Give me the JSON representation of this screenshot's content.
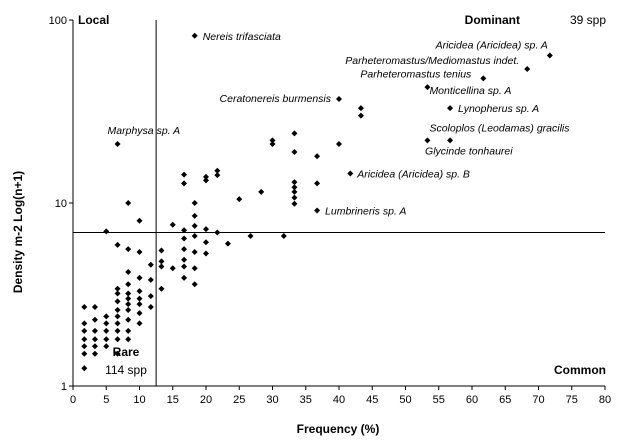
{
  "chart_data": {
    "type": "scatter",
    "xlabel": "Frequency (%)",
    "ylabel": "Density m-2 Log(n+1)",
    "xlim": [
      0,
      80
    ],
    "ylim": [
      1,
      100
    ],
    "yscale": "log",
    "x_ticks": [
      "0",
      "5",
      "10",
      "15",
      "20",
      "25",
      "30",
      "35",
      "40",
      "45",
      "50",
      "55",
      "60",
      "65",
      "70",
      "75",
      "80"
    ],
    "y_ticks": [
      {
        "value": 1,
        "label": "1"
      },
      {
        "value": 10,
        "label": "10"
      },
      {
        "value": 100,
        "label": "100"
      }
    ],
    "grid": false,
    "thresholds": {
      "frequency": 12.5,
      "density": 6.9
    },
    "quadrants": {
      "local": {
        "title": "Local"
      },
      "dominant": {
        "title": "Dominant",
        "count": "39 spp"
      },
      "rare": {
        "title": "Rare",
        "count": "114 spp"
      },
      "common": {
        "title": "Common"
      }
    },
    "labeled_points": [
      {
        "label": "Nereis trifasciata",
        "x": 18.3,
        "y": 82
      },
      {
        "label": "Aricidea (Aricidea) sp. A",
        "x": 71.7,
        "y": 64
      },
      {
        "label": "Parheteromastus/Mediomastus indet.",
        "x": 68.3,
        "y": 54
      },
      {
        "label": "Parheteromastus tenius",
        "x": 61.7,
        "y": 48
      },
      {
        "label": "Monticellina sp. A",
        "x": 53.3,
        "y": 43
      },
      {
        "label": "Ceratonereis burmensis",
        "x": 40,
        "y": 37
      },
      {
        "label": "Lynopherus sp. A",
        "x": 56.7,
        "y": 33
      },
      {
        "label": "Marphysa sp. A",
        "x": 6.7,
        "y": 21
      },
      {
        "label": "Scoloplos (Leodamas) gracilis",
        "x": 53.3,
        "y": 22
      },
      {
        "label": "Glycinde tonhaurei",
        "x": 56.7,
        "y": 22
      },
      {
        "label": "Aricidea (Aricidea) sp. B",
        "x": 41.7,
        "y": 14.5
      },
      {
        "label": "Lumbrineris sp. A",
        "x": 36.7,
        "y": 9.1
      }
    ],
    "points": [
      {
        "x": 43.3,
        "y": 33
      },
      {
        "x": 43.3,
        "y": 30
      },
      {
        "x": 33.3,
        "y": 24
      },
      {
        "x": 30,
        "y": 22
      },
      {
        "x": 30,
        "y": 21
      },
      {
        "x": 40,
        "y": 21
      },
      {
        "x": 33.3,
        "y": 19
      },
      {
        "x": 36.7,
        "y": 18
      },
      {
        "x": 16.7,
        "y": 14.3
      },
      {
        "x": 21.7,
        "y": 15
      },
      {
        "x": 21.7,
        "y": 14.2
      },
      {
        "x": 20,
        "y": 13.9
      },
      {
        "x": 20,
        "y": 13.3
      },
      {
        "x": 16.7,
        "y": 12.8
      },
      {
        "x": 36.7,
        "y": 12.8
      },
      {
        "x": 33.3,
        "y": 13
      },
      {
        "x": 33.3,
        "y": 12.2
      },
      {
        "x": 33.3,
        "y": 11.5
      },
      {
        "x": 28.3,
        "y": 11.5
      },
      {
        "x": 33.3,
        "y": 10.7
      },
      {
        "x": 33.3,
        "y": 9.9
      },
      {
        "x": 25,
        "y": 10.5
      },
      {
        "x": 18.3,
        "y": 10
      },
      {
        "x": 8.3,
        "y": 10
      },
      {
        "x": 18.3,
        "y": 8.5
      },
      {
        "x": 10,
        "y": 8
      },
      {
        "x": 15,
        "y": 7.6
      },
      {
        "x": 18.3,
        "y": 7.5
      },
      {
        "x": 20,
        "y": 7.2
      },
      {
        "x": 16.7,
        "y": 7.1
      },
      {
        "x": 21.7,
        "y": 6.9
      },
      {
        "x": 5,
        "y": 7
      },
      {
        "x": 26.7,
        "y": 6.6
      },
      {
        "x": 31.7,
        "y": 6.6
      },
      {
        "x": 18.3,
        "y": 6.6
      },
      {
        "x": 16.7,
        "y": 6.4
      },
      {
        "x": 20,
        "y": 6.1
      },
      {
        "x": 23.3,
        "y": 6.0
      },
      {
        "x": 6.7,
        "y": 5.9
      },
      {
        "x": 8.3,
        "y": 5.6
      },
      {
        "x": 10,
        "y": 5.4
      },
      {
        "x": 13.3,
        "y": 5.5
      },
      {
        "x": 16.7,
        "y": 5.6
      },
      {
        "x": 18.3,
        "y": 5.4
      },
      {
        "x": 20,
        "y": 5.3
      },
      {
        "x": 13.3,
        "y": 4.8
      },
      {
        "x": 16.7,
        "y": 4.9
      },
      {
        "x": 11.7,
        "y": 4.6
      },
      {
        "x": 13.3,
        "y": 4.5
      },
      {
        "x": 15,
        "y": 4.4
      },
      {
        "x": 16.7,
        "y": 4.5
      },
      {
        "x": 18.3,
        "y": 4.4
      },
      {
        "x": 8.3,
        "y": 4.2
      },
      {
        "x": 16.7,
        "y": 3.9
      },
      {
        "x": 10,
        "y": 3.9
      },
      {
        "x": 11.7,
        "y": 3.8
      },
      {
        "x": 18.3,
        "y": 3.6
      },
      {
        "x": 8.3,
        "y": 3.6
      },
      {
        "x": 6.7,
        "y": 3.4
      },
      {
        "x": 13.3,
        "y": 3.4
      },
      {
        "x": 10,
        "y": 3.3
      },
      {
        "x": 8.3,
        "y": 3.2
      },
      {
        "x": 6.7,
        "y": 3.2
      },
      {
        "x": 11.7,
        "y": 3.1
      },
      {
        "x": 10,
        "y": 3.0
      },
      {
        "x": 8.3,
        "y": 3.0
      },
      {
        "x": 6.7,
        "y": 2.9
      },
      {
        "x": 10,
        "y": 2.8
      },
      {
        "x": 8.3,
        "y": 2.8
      },
      {
        "x": 1.7,
        "y": 2.7
      },
      {
        "x": 3.3,
        "y": 2.7
      },
      {
        "x": 11.7,
        "y": 2.7
      },
      {
        "x": 6.7,
        "y": 2.6
      },
      {
        "x": 8.3,
        "y": 2.6
      },
      {
        "x": 10,
        "y": 2.5
      },
      {
        "x": 5,
        "y": 2.4
      },
      {
        "x": 6.7,
        "y": 2.4
      },
      {
        "x": 3.3,
        "y": 2.3
      },
      {
        "x": 8.3,
        "y": 2.3
      },
      {
        "x": 1.7,
        "y": 2.2
      },
      {
        "x": 5,
        "y": 2.2
      },
      {
        "x": 6.7,
        "y": 2.2
      },
      {
        "x": 10,
        "y": 2.2
      },
      {
        "x": 1.7,
        "y": 2.0
      },
      {
        "x": 3.3,
        "y": 2.0
      },
      {
        "x": 5,
        "y": 2.0
      },
      {
        "x": 6.7,
        "y": 2.0
      },
      {
        "x": 8.3,
        "y": 2.0
      },
      {
        "x": 1.7,
        "y": 1.8
      },
      {
        "x": 3.3,
        "y": 1.8
      },
      {
        "x": 5,
        "y": 1.8
      },
      {
        "x": 6.7,
        "y": 1.8
      },
      {
        "x": 8.3,
        "y": 1.8
      },
      {
        "x": 1.7,
        "y": 1.65
      },
      {
        "x": 3.3,
        "y": 1.65
      },
      {
        "x": 5,
        "y": 1.65
      },
      {
        "x": 1.7,
        "y": 1.5
      },
      {
        "x": 3.3,
        "y": 1.5
      },
      {
        "x": 6.7,
        "y": 1.5
      },
      {
        "x": 1.7,
        "y": 1.25
      }
    ]
  }
}
